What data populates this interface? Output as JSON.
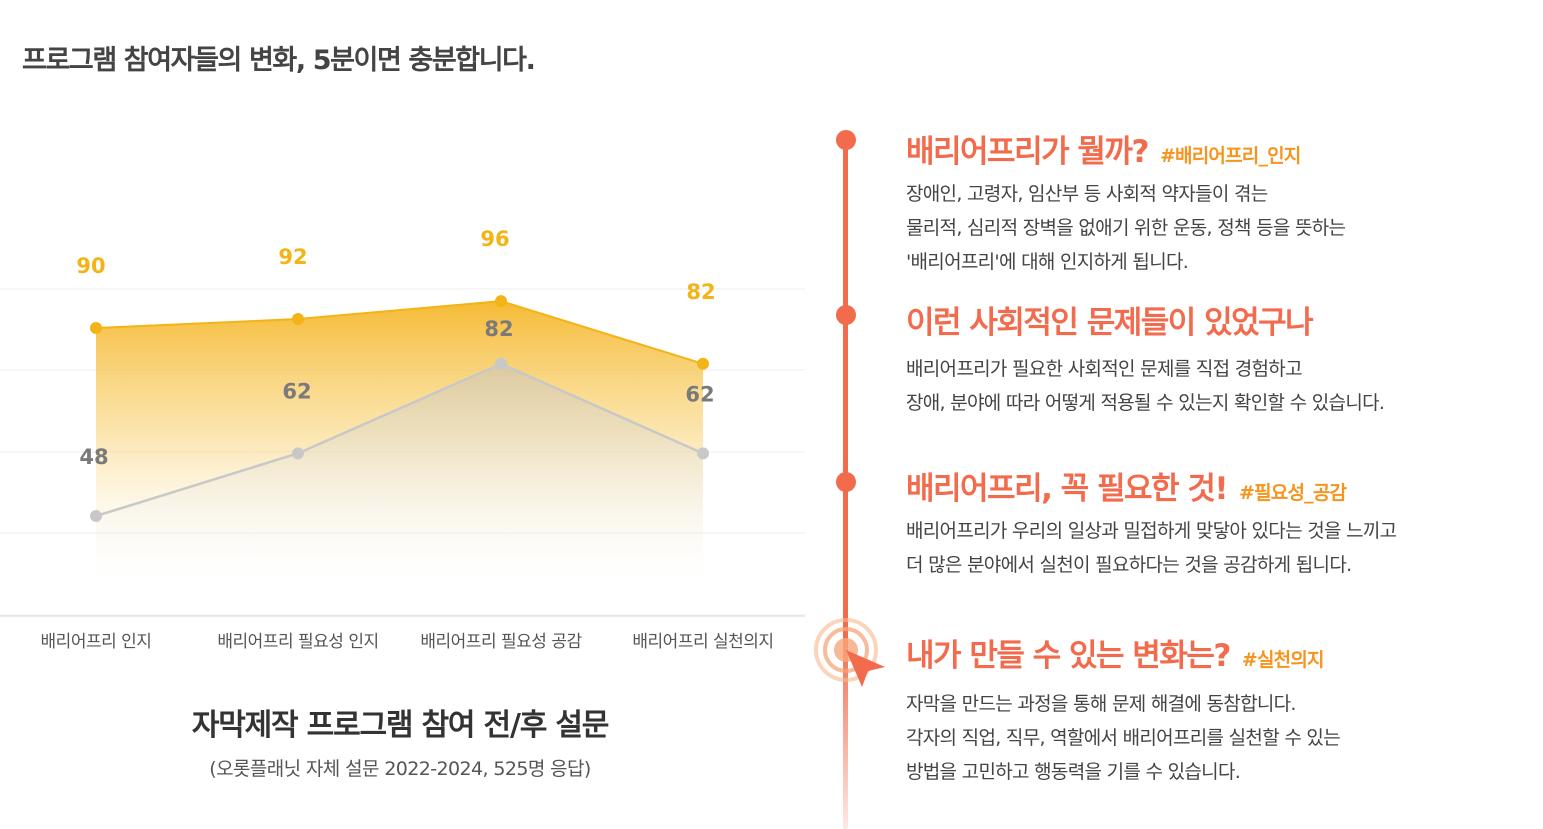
{
  "headline": "프로그램 참여자들의 변화, 5분이면 충분합니다.",
  "chart_data": {
    "type": "area",
    "title": "자막제작 프로그램 참여 전/후 설문",
    "subtitle": "(오롯플래닛 자체 설문 2022-2024, 525명 응답)",
    "categories": [
      "배리어프리 인지",
      "배리어프리 필요성 인지",
      "배리어프리 필요성 공감",
      "배리어프리 실천의지"
    ],
    "series": [
      {
        "values": [
          90,
          92,
          96,
          82
        ],
        "color": "#f2b416"
      },
      {
        "values": [
          48,
          62,
          82,
          62
        ],
        "color": "#c8c8c8"
      }
    ],
    "grid": true,
    "legend": "none"
  },
  "timeline": {
    "items": [
      {
        "title": "배리어프리가 뭘까?",
        "tag": "#배리어프리_인지",
        "lines": [
          "장애인, 고령자, 임산부 등 사회적 약자들이 겪는",
          "물리적, 심리적 장벽을 없애기 위한 운동, 정책 등을 뜻하는",
          "'배리어프리'에 대해 인지하게 됩니다."
        ]
      },
      {
        "title": "이런 사회적인 문제들이 있었구나",
        "tag": "",
        "lines": [
          "배리어프리가 필요한 사회적인 문제를 직접 경험하고",
          "장애, 분야에 따라 어떻게 적용될 수 있는지 확인할 수 있습니다."
        ]
      },
      {
        "title": "배리어프리, 꼭 필요한 것!",
        "tag": "#필요성_공감",
        "lines": [
          "배리어프리가 우리의 일상과 밀접하게 맞닿아 있다는 것을 느끼고",
          "더 많은 분야에서 실천이 필요하다는 것을 공감하게 됩니다."
        ]
      },
      {
        "title": "내가 만들 수 있는 변화는?",
        "tag": "#실천의지",
        "lines": [
          "자막을 만드는 과정을 통해 문제 해결에 동참합니다.",
          "각자의 직업, 직무, 역할에서 배리어프리를 실천할 수 있는",
          "방법을 고민하고 행동력을 기를 수 있습니다."
        ]
      }
    ]
  },
  "colors": {
    "accent": "#f26b4d",
    "tag": "#f7941d",
    "after": "#f2b416",
    "before": "#c8c8c8"
  },
  "icons": {
    "pointer": "cursor-pointer-icon"
  }
}
